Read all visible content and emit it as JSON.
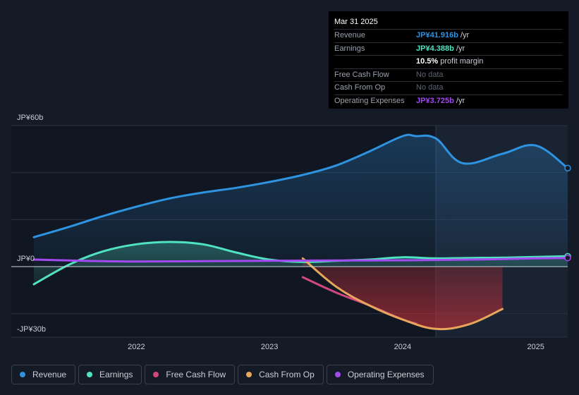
{
  "tooltip": {
    "date": "Mar 31 2025",
    "rows": [
      {
        "label": "Revenue",
        "value": "JP¥41.916b",
        "suffix": " /yr",
        "color": "#2e93e0"
      },
      {
        "label": "Earnings",
        "value": "JP¥4.388b",
        "suffix": " /yr",
        "color": "#4fe3c1"
      },
      {
        "label": "",
        "value": "10.5%",
        "suffix": " profit margin",
        "color": "#ffffff"
      },
      {
        "label": "Free Cash Flow",
        "value": "No data",
        "suffix": "",
        "color": "#5c6370"
      },
      {
        "label": "Cash From Op",
        "value": "No data",
        "suffix": "",
        "color": "#5c6370"
      },
      {
        "label": "Operating Expenses",
        "value": "JP¥3.725b",
        "suffix": " /yr",
        "color": "#a34af0"
      }
    ]
  },
  "legend": [
    {
      "label": "Revenue",
      "color": "#2e93e0"
    },
    {
      "label": "Earnings",
      "color": "#4fe3c1"
    },
    {
      "label": "Free Cash Flow",
      "color": "#d1477e"
    },
    {
      "label": "Cash From Op",
      "color": "#e8a65a"
    },
    {
      "label": "Operating Expenses",
      "color": "#a34af0"
    }
  ],
  "chart_data": {
    "type": "area",
    "ylabels": {
      "top": "JP¥60b",
      "zero": "JP¥0",
      "bottom": "-JP¥30b"
    },
    "ylim": [
      -30,
      60
    ],
    "xlim": [
      2021.23,
      2025.24
    ],
    "x_ticks": [
      2022,
      2023,
      2024,
      2025
    ],
    "x_tick_labels": [
      "2022",
      "2023",
      "2024",
      "2025"
    ],
    "highlight_from": 2024.25,
    "series": [
      {
        "name": "Revenue",
        "color": "#2e93e0",
        "fill": true,
        "points": [
          [
            2021.23,
            12.5
          ],
          [
            2021.5,
            17
          ],
          [
            2021.75,
            21.5
          ],
          [
            2022.0,
            25.5
          ],
          [
            2022.25,
            29
          ],
          [
            2022.5,
            31.5
          ],
          [
            2022.75,
            33.5
          ],
          [
            2023.0,
            36
          ],
          [
            2023.25,
            39
          ],
          [
            2023.5,
            43
          ],
          [
            2023.75,
            49
          ],
          [
            2024.0,
            55.5
          ],
          [
            2024.1,
            55.5
          ],
          [
            2024.25,
            54.5
          ],
          [
            2024.45,
            44
          ],
          [
            2024.75,
            48
          ],
          [
            2025.0,
            51.5
          ],
          [
            2025.24,
            41.9
          ]
        ]
      },
      {
        "name": "Earnings",
        "color": "#4fe3c1",
        "fill": true,
        "points": [
          [
            2021.23,
            -7.5
          ],
          [
            2021.5,
            1
          ],
          [
            2021.75,
            6.5
          ],
          [
            2022.0,
            9.5
          ],
          [
            2022.25,
            10.5
          ],
          [
            2022.5,
            9.5
          ],
          [
            2022.75,
            6
          ],
          [
            2023.0,
            3
          ],
          [
            2023.25,
            2
          ],
          [
            2023.5,
            2.5
          ],
          [
            2023.75,
            3
          ],
          [
            2024.0,
            4
          ],
          [
            2024.25,
            3.5
          ],
          [
            2024.5,
            3.7
          ],
          [
            2024.75,
            3.8
          ],
          [
            2025.0,
            4.1
          ],
          [
            2025.24,
            4.4
          ]
        ]
      },
      {
        "name": "Free Cash Flow",
        "color": "#d1477e",
        "fill": false,
        "points": [
          [
            2023.25,
            -4.5
          ],
          [
            2023.5,
            -11
          ],
          [
            2023.75,
            -16.5
          ],
          [
            2024.0,
            -22.5
          ],
          [
            2024.1,
            -24.2
          ]
        ]
      },
      {
        "name": "Cash From Op",
        "color": "#e8a65a",
        "fill": true,
        "points": [
          [
            2023.25,
            3.5
          ],
          [
            2023.5,
            -8.5
          ],
          [
            2023.75,
            -16.5
          ],
          [
            2024.0,
            -22.5
          ],
          [
            2024.25,
            -26.5
          ],
          [
            2024.5,
            -24.5
          ],
          [
            2024.75,
            -18
          ]
        ]
      },
      {
        "name": "Operating Expenses",
        "color": "#a34af0",
        "fill": false,
        "points": [
          [
            2021.23,
            3
          ],
          [
            2021.5,
            2.6
          ],
          [
            2021.75,
            2.3
          ],
          [
            2022.0,
            2.2
          ],
          [
            2022.5,
            2.3
          ],
          [
            2023.0,
            2.5
          ],
          [
            2023.5,
            2.6
          ],
          [
            2024.0,
            2.7
          ],
          [
            2024.5,
            3
          ],
          [
            2024.75,
            3.2
          ],
          [
            2025.0,
            3.5
          ],
          [
            2025.24,
            3.7
          ]
        ]
      }
    ]
  }
}
